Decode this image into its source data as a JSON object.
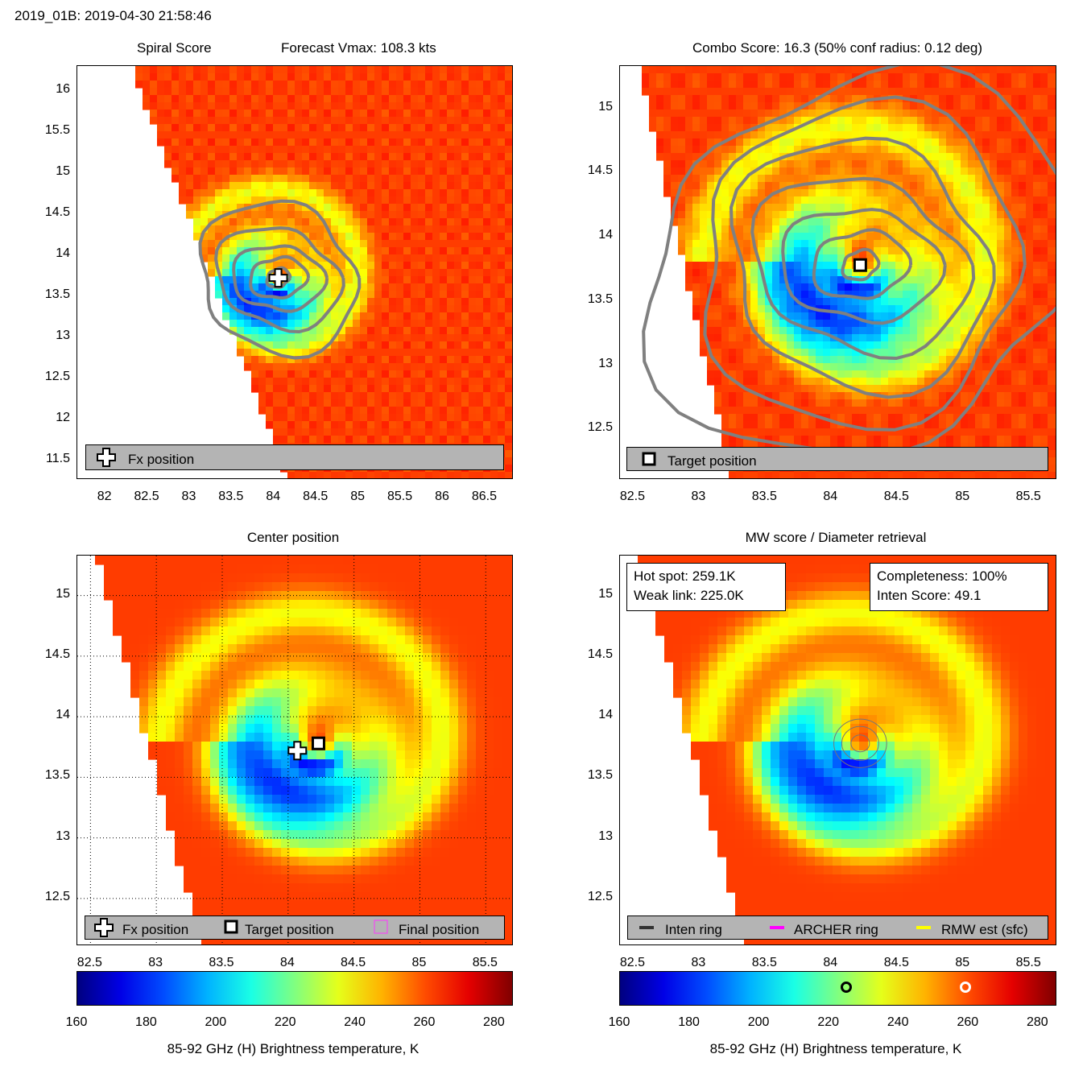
{
  "header": {
    "title": "2019_01B: 2019-04-30 21:58:46"
  },
  "colors": {
    "legend_bg": "#b4b4b4",
    "contour": "#808080",
    "axis": "#000000"
  },
  "chart_data": [
    {
      "id": "spiral",
      "type": "heatmap",
      "title": "Spiral Score",
      "subtitle": "Forecast Vmax: 108.3 kts",
      "x_ticks": [
        "82",
        "82.5",
        "83",
        "83.5",
        "84",
        "84.5",
        "85",
        "85.5",
        "86",
        "86.5"
      ],
      "x_tick_values": [
        82,
        82.5,
        83,
        83.5,
        84,
        84.5,
        85,
        85.5,
        86,
        86.5
      ],
      "y_ticks": [
        "11.5",
        "12",
        "12.5",
        "13",
        "13.5",
        "14",
        "14.5",
        "15",
        "15.5",
        "16"
      ],
      "y_tick_values": [
        11.5,
        12,
        12.5,
        13,
        13.5,
        14,
        14.5,
        15,
        15.5,
        16
      ],
      "xlim": [
        81.67,
        86.82
      ],
      "ylim": [
        11.28,
        16.3
      ],
      "center": [
        84.05,
        13.72
      ],
      "markers": [
        {
          "label": "Fx position",
          "x": 84.05,
          "y": 13.72,
          "symbol": "plus"
        }
      ],
      "legend": [
        "Fx position"
      ]
    },
    {
      "id": "combo",
      "type": "heatmap",
      "title": "Combo Score: 16.3  (50% conf radius: 0.12 deg)",
      "x_ticks": [
        "82.5",
        "83",
        "83.5",
        "84",
        "84.5",
        "85",
        "85.5"
      ],
      "x_tick_values": [
        82.5,
        83,
        83.5,
        84,
        84.5,
        85,
        85.5
      ],
      "y_ticks": [
        "12.5",
        "13",
        "13.5",
        "14",
        "14.5",
        "15"
      ],
      "y_tick_values": [
        12.5,
        13,
        13.5,
        14,
        14.5,
        15
      ],
      "xlim": [
        82.4,
        85.7
      ],
      "ylim": [
        12.12,
        15.33
      ],
      "center": [
        84.22,
        13.78
      ],
      "markers": [
        {
          "label": "Target position",
          "x": 84.22,
          "y": 13.78,
          "symbol": "square"
        }
      ],
      "legend": [
        "Target position"
      ]
    },
    {
      "id": "center",
      "type": "heatmap",
      "title": "Center position",
      "x_ticks": [
        "82.5",
        "83",
        "83.5",
        "84",
        "84.5",
        "85",
        "85.5"
      ],
      "x_tick_values": [
        82.5,
        83,
        83.5,
        84,
        84.5,
        85,
        85.5
      ],
      "y_ticks": [
        "12.5",
        "13",
        "13.5",
        "14",
        "14.5",
        "15"
      ],
      "y_tick_values": [
        12.5,
        13,
        13.5,
        14,
        14.5,
        15
      ],
      "xlim": [
        82.4,
        85.7
      ],
      "ylim": [
        12.12,
        15.33
      ],
      "center": [
        84.22,
        13.78
      ],
      "grid": true,
      "markers": [
        {
          "label": "Fx position",
          "x": 84.07,
          "y": 13.72,
          "symbol": "plus"
        },
        {
          "label": "Target position",
          "x": 84.23,
          "y": 13.78,
          "symbol": "square"
        }
      ],
      "legend": [
        "Fx position",
        "Target position",
        "Final position"
      ],
      "colorbar": {
        "label": "85-92 GHz (H) Brightness temperature, K",
        "ticks": [
          "160",
          "180",
          "200",
          "220",
          "240",
          "260",
          "280"
        ],
        "tick_values": [
          160,
          180,
          200,
          220,
          240,
          260,
          280
        ],
        "range": [
          160,
          285
        ]
      }
    },
    {
      "id": "mw",
      "type": "heatmap",
      "title": "MW score / Diameter retrieval",
      "x_ticks": [
        "82.5",
        "83",
        "83.5",
        "84",
        "84.5",
        "85",
        "85.5"
      ],
      "x_tick_values": [
        82.5,
        83,
        83.5,
        84,
        84.5,
        85,
        85.5
      ],
      "y_ticks": [
        "12.5",
        "13",
        "13.5",
        "14",
        "14.5",
        "15"
      ],
      "y_tick_values": [
        12.5,
        13,
        13.5,
        14,
        14.5,
        15
      ],
      "xlim": [
        82.4,
        85.7
      ],
      "ylim": [
        12.12,
        15.33
      ],
      "center": [
        84.22,
        13.78
      ],
      "info_left": [
        "Hot spot: 259.1K",
        "Weak link: 225.0K"
      ],
      "info_right": [
        "Completeness: 100%",
        "Inten Score: 49.1"
      ],
      "hot_spot_K": 259.1,
      "weak_link_K": 225.0,
      "legend": [
        "Inten ring",
        "ARCHER ring",
        "RMW est (sfc)"
      ],
      "legend_colors": [
        "#333333",
        "#ff00ff",
        "#ffff00"
      ],
      "colorbar": {
        "label": "85-92 GHz (H) Brightness temperature, K",
        "ticks": [
          "160",
          "180",
          "200",
          "220",
          "240",
          "260",
          "280"
        ],
        "tick_values": [
          160,
          180,
          200,
          220,
          240,
          260,
          280
        ],
        "range": [
          160,
          285
        ]
      }
    }
  ]
}
